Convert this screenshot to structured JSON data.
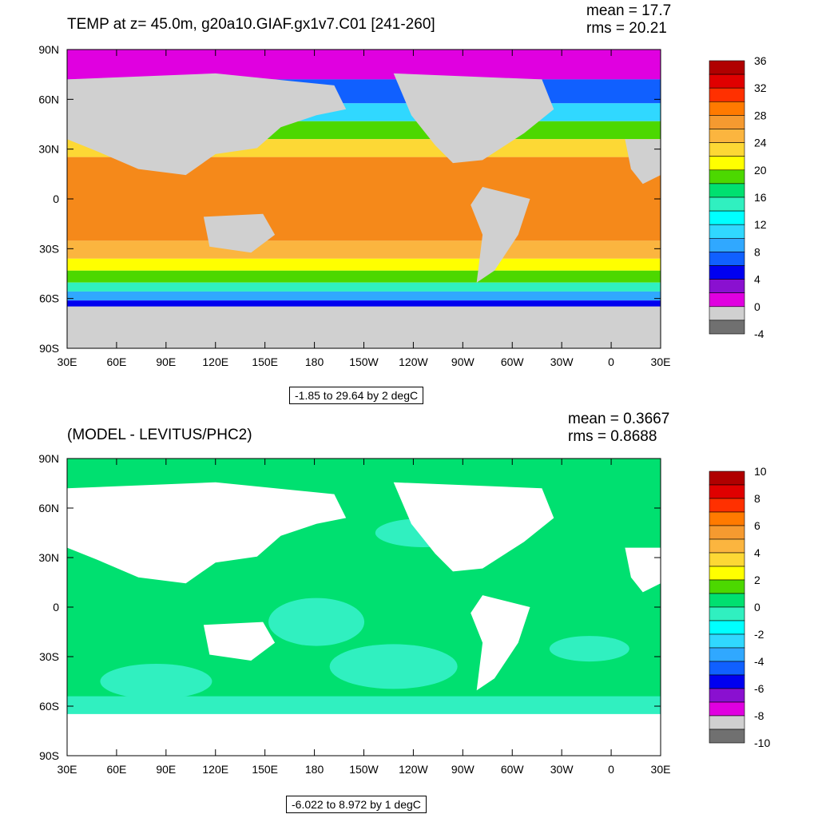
{
  "panels": [
    {
      "title": "TEMP at z=  45.0m, g20a10.GIAF.gx1v7.C01 [241-260]",
      "stats": {
        "mean": "mean = 17.7",
        "rms": "rms = 20.21"
      },
      "range_label": "-1.85 to 29.64 by 2 degC",
      "colorbar": {
        "labels": [
          "36",
          "32",
          "28",
          "24",
          "20",
          "16",
          "12",
          "8",
          "4",
          "0",
          "-4"
        ],
        "colors": [
          "#b00000",
          "#e00000",
          "#ff3000",
          "#ff7a00",
          "#f59a30",
          "#fbb53f",
          "#fdd835",
          "#ffff00",
          "#4cd800",
          "#00e070",
          "#30f0c0",
          "#00ffff",
          "#30d8ff",
          "#30a8ff",
          "#1060ff",
          "#0000f0",
          "#8a10d0",
          "#e000e0",
          "#d0d0d0",
          "#707070"
        ]
      },
      "map_colors": {
        "land": "#d0d0d0",
        "ocean_warm": "#f5891a",
        "ocean_mid": "#fdd835",
        "ocean_cool": "#30d8ff",
        "ocean_cold": "#1060ff"
      }
    },
    {
      "title": "(MODEL - LEVITUS/PHC2)",
      "stats": {
        "mean": "mean = 0.3667",
        "rms": "rms = 0.8688"
      },
      "range_label": "-6.022 to 8.972 by 1 degC",
      "colorbar": {
        "labels": [
          "10",
          "8",
          "6",
          "4",
          "2",
          "0",
          "-2",
          "-4",
          "-6",
          "-8",
          "-10"
        ],
        "colors": [
          "#b00000",
          "#e00000",
          "#ff3000",
          "#ff7a00",
          "#f59a30",
          "#fbb53f",
          "#fdd835",
          "#ffff00",
          "#4cd800",
          "#00e070",
          "#30f0c0",
          "#00ffff",
          "#30d8ff",
          "#30a8ff",
          "#1060ff",
          "#0000f0",
          "#8a10d0",
          "#e000e0",
          "#d0d0d0",
          "#707070"
        ]
      },
      "map_colors": {
        "land": "#ffffff",
        "ocean_base": "#00e070",
        "ocean_neg": "#30f0c0"
      }
    }
  ],
  "axes": {
    "x_ticks": [
      "30E",
      "60E",
      "90E",
      "120E",
      "150E",
      "180",
      "150W",
      "120W",
      "90W",
      "60W",
      "30W",
      "0",
      "30E"
    ],
    "y_ticks": [
      "90N",
      "60N",
      "30N",
      "0",
      "30S",
      "60S",
      "90S"
    ]
  }
}
